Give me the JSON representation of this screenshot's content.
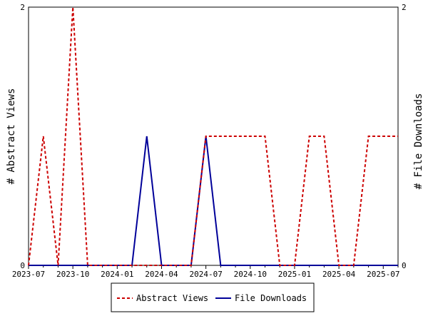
{
  "chart_data": {
    "type": "line",
    "title": "",
    "x": [
      "2023-07",
      "2023-08",
      "2023-09",
      "2023-10",
      "2023-11",
      "2023-12",
      "2024-01",
      "2024-02",
      "2024-03",
      "2024-04",
      "2024-05",
      "2024-06",
      "2024-07",
      "2024-08",
      "2024-09",
      "2024-10",
      "2024-11",
      "2024-12",
      "2025-01",
      "2025-02",
      "2025-03",
      "2025-04",
      "2025-05",
      "2025-06",
      "2025-07",
      "2025-08"
    ],
    "x_tick_labels": [
      "2023-07",
      "2023-10",
      "2024-01",
      "2024-04",
      "2024-07",
      "2024-10",
      "2025-01",
      "2025-04",
      "2025-07"
    ],
    "y_left": {
      "label": "# Abstract Views",
      "ticks": [
        "0",
        "2"
      ],
      "range": [
        0,
        2
      ]
    },
    "y_right": {
      "label": "# File Downloads",
      "ticks": [
        "0",
        "2"
      ],
      "range": [
        0,
        2
      ]
    },
    "series": [
      {
        "name": "Abstract Views",
        "axis": "left",
        "color": "#cc0000",
        "style": "dashed",
        "values": [
          0,
          1,
          0,
          2,
          0,
          0,
          0,
          0,
          0,
          0,
          0,
          0,
          1,
          1,
          1,
          1,
          1,
          0,
          0,
          1,
          1,
          0,
          0,
          1,
          1,
          1
        ]
      },
      {
        "name": "File Downloads",
        "axis": "right",
        "color": "#000099",
        "style": "solid",
        "values": [
          0,
          0,
          0,
          0,
          0,
          0,
          0,
          0,
          1,
          0,
          0,
          0,
          1,
          0,
          0,
          0,
          0,
          0,
          0,
          0,
          0,
          0,
          0,
          0,
          0,
          0
        ]
      }
    ],
    "legend": {
      "placement": "bottom"
    },
    "grid": false
  }
}
